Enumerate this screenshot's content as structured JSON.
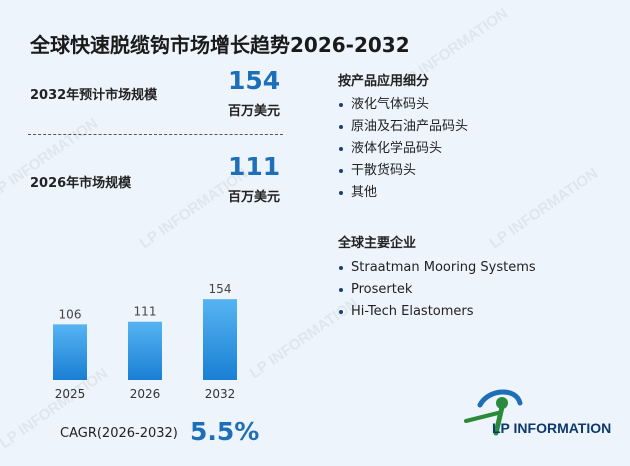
{
  "title": "全球快速脱缆钩市场增长趋势2026-2032",
  "stats": [
    {
      "label": "2032年预计市场规模",
      "value": "154",
      "unit": "百万美元"
    },
    {
      "label": "2026年市场规模",
      "value": "111",
      "unit": "百万美元"
    }
  ],
  "segments": {
    "title": "按产品应用细分",
    "items": [
      "液化气体码头",
      "原油及石油产品码头",
      "液体化学品码头",
      "干散货码头",
      "其他"
    ]
  },
  "companies": {
    "title": "全球主要企业",
    "items": [
      "Straatman Mooring Systems",
      "Prosertek",
      "Hi-Tech Elastomers"
    ]
  },
  "cagr": {
    "label": "CAGR(2026-2032)",
    "value": "5.5%"
  },
  "logo": {
    "text": "LP INFORMATION"
  },
  "watermark_text": "LP INFORMATION",
  "colors": {
    "accent": "#1c6fb8",
    "bar_top": "#56b4f2",
    "bar_bottom": "#1a7fd4"
  },
  "chart_data": {
    "type": "bar",
    "categories": [
      "2025",
      "2026",
      "2032"
    ],
    "values": [
      106,
      111,
      154
    ],
    "ylim": [
      0,
      160
    ]
  }
}
